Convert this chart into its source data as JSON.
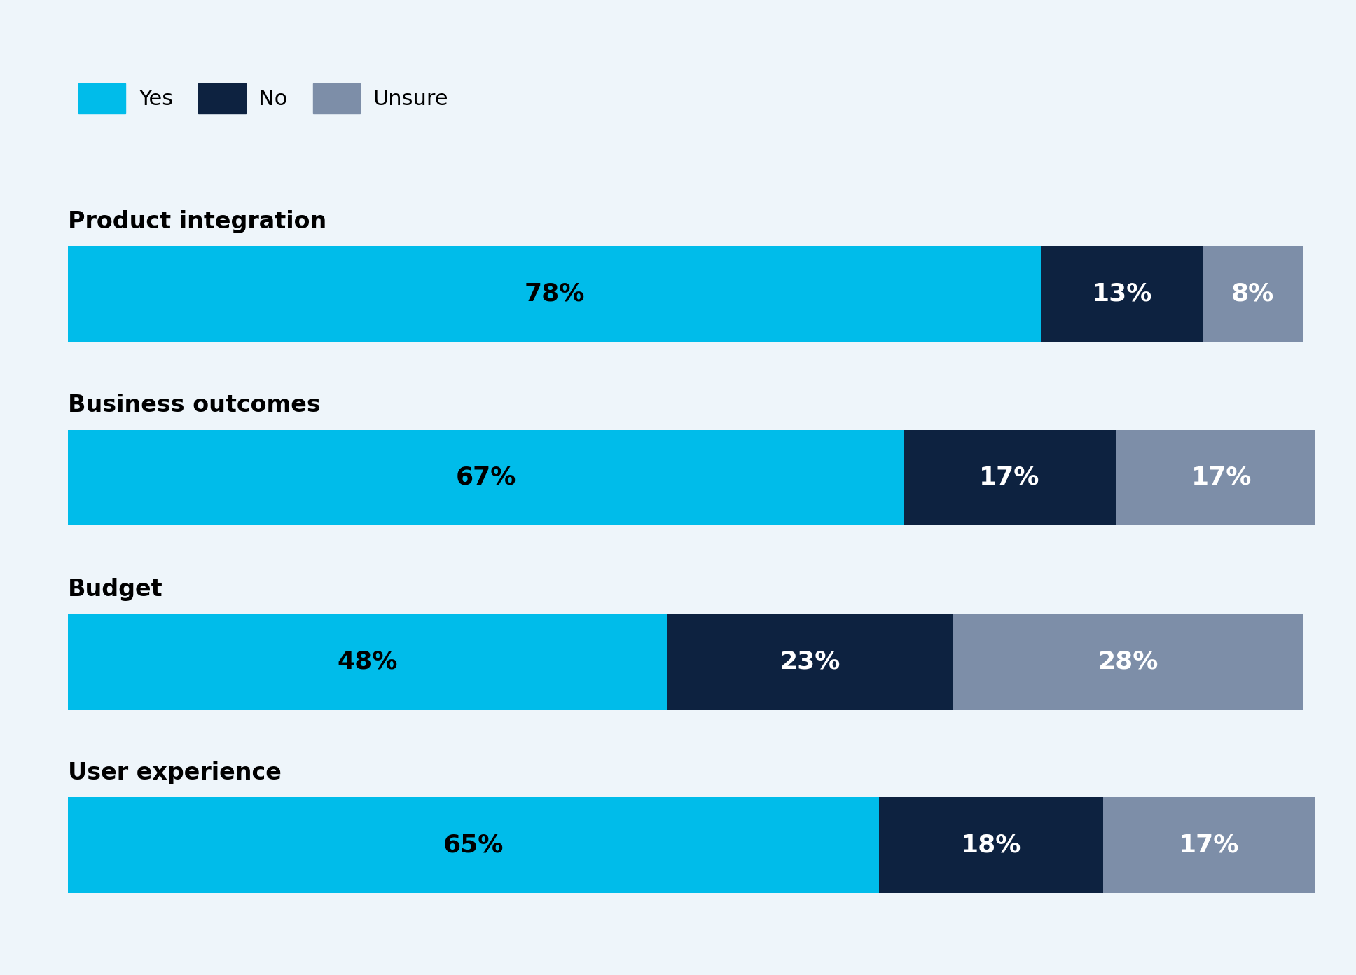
{
  "categories": [
    "Product integration",
    "Business outcomes",
    "Budget",
    "User experience"
  ],
  "yes": [
    78,
    67,
    48,
    65
  ],
  "no": [
    13,
    17,
    23,
    18
  ],
  "unsure": [
    8,
    17,
    28,
    17
  ],
  "yes_color": "#00BCEA",
  "no_color": "#0D2240",
  "unsure_color": "#7D8EA8",
  "background_color": "#EEF5FA",
  "font_size_labels": 26,
  "font_size_category": 24,
  "font_size_legend": 22,
  "legend_labels": [
    "Yes",
    "No",
    "Unsure"
  ],
  "bar_height": 0.52
}
